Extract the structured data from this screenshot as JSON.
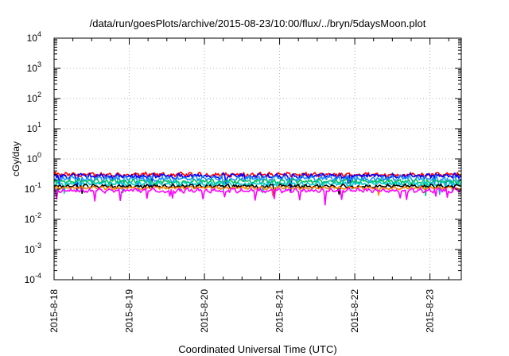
{
  "chart_data": {
    "type": "line",
    "title": "/data/run/goesPlots/archive/2015-08-23/10:00/flux/../bryn/5daysMoon.plot",
    "xlabel": "Coordinated Universal Time (UTC)",
    "ylabel": "cGy/day",
    "yscale": "log",
    "ylim_exp": [
      -4,
      4
    ],
    "y_ticks": [
      {
        "base": "10",
        "exp": "-4"
      },
      {
        "base": "10",
        "exp": "-3"
      },
      {
        "base": "10",
        "exp": "-2"
      },
      {
        "base": "10",
        "exp": "-1"
      },
      {
        "base": "10",
        "exp": "0"
      },
      {
        "base": "10",
        "exp": "1"
      },
      {
        "base": "10",
        "exp": "2"
      },
      {
        "base": "10",
        "exp": "3"
      },
      {
        "base": "10",
        "exp": "4"
      }
    ],
    "xlim": [
      "2015-08-18",
      "2015-08-23 10:00"
    ],
    "x_ticks": [
      "2015-8-18",
      "2015-8-19",
      "2015-8-20",
      "2015-8-21",
      "2015-8-22",
      "2015-8-23"
    ],
    "grid": true,
    "series": [
      {
        "color": "#ff0000",
        "level": 0.3,
        "noise": 0.06,
        "dips": 0.0
      },
      {
        "color": "#0000ff",
        "level": 0.27,
        "noise": 0.07,
        "dips": 0.3
      },
      {
        "color": "#1e90ff",
        "level": 0.22,
        "noise": 0.08,
        "dips": 0.5
      },
      {
        "color": "#00c060",
        "level": 0.18,
        "noise": 0.06,
        "dips": 0.2
      },
      {
        "color": "#00c8c8",
        "level": 0.15,
        "noise": 0.06,
        "dips": 0.2
      },
      {
        "color": "#000000",
        "level": 0.125,
        "noise": 0.05,
        "dips": 0.3
      },
      {
        "color": "#ff8000",
        "level": 0.11,
        "noise": 0.04,
        "dips": 0.2
      },
      {
        "color": "#ff00ff",
        "level": 0.09,
        "noise": 0.06,
        "dips": 1.0
      }
    ]
  }
}
